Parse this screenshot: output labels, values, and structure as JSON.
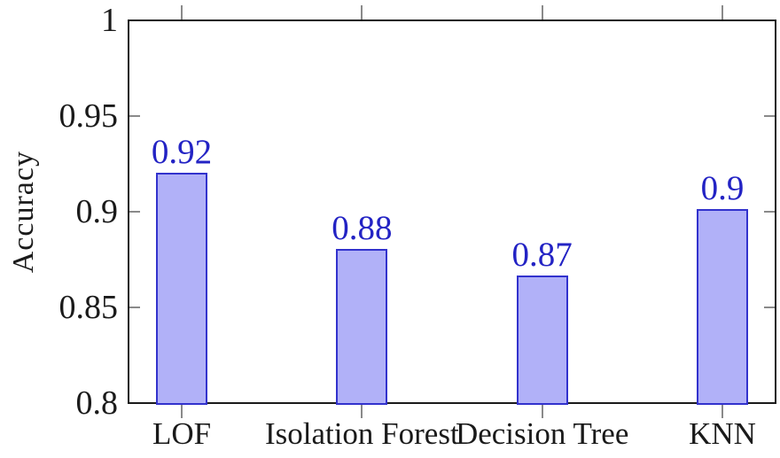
{
  "chart_data": {
    "type": "bar",
    "title": "",
    "xlabel": "",
    "ylabel": "Accuracy",
    "categories": [
      "LOF",
      "Isolation Forest",
      "Decision Tree",
      "KNN"
    ],
    "values": [
      0.92,
      0.88,
      0.87,
      0.9
    ],
    "value_labels": [
      "0.92",
      "0.88",
      "0.87",
      "0.9"
    ],
    "rendered_bar_tops": [
      0.92,
      0.88,
      0.866,
      0.901
    ],
    "ylim": [
      0.8,
      1.0
    ],
    "yticks": [
      1,
      0.95,
      0.9,
      0.85,
      0.8
    ],
    "ytick_labels": [
      "1",
      "0.95",
      "0.9",
      "0.85",
      "0.8"
    ],
    "grid": false,
    "legend": null,
    "colors": {
      "bar_fill": "#b1b1f8",
      "bar_border": "#3232cd",
      "value_label": "#2323c4",
      "axis": "#1a1a1a",
      "tick": "#8a8a8a",
      "text": "#1a1a1a",
      "background": "#ffffff"
    }
  }
}
